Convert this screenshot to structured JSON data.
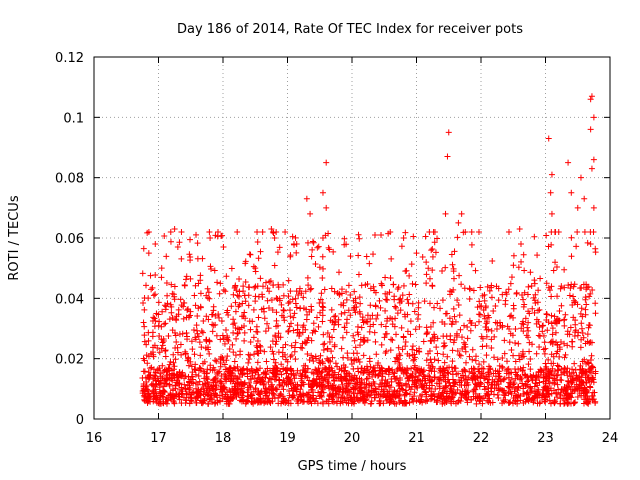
{
  "chart_data": {
    "type": "scatter",
    "title": "Day 186 of 2014, Rate Of TEC Index for receiver pots",
    "xlabel": "GPS time / hours",
    "ylabel": "ROTI / TECUs",
    "xlim": [
      16,
      24
    ],
    "ylim": [
      0,
      0.12
    ],
    "grid": true,
    "xticks": [
      16,
      17,
      18,
      19,
      20,
      21,
      22,
      23,
      24
    ],
    "xtick_labels": [
      "16",
      "17",
      "18",
      "19",
      "20",
      "21",
      "22",
      "23",
      "24"
    ],
    "yticks": [
      0,
      0.02,
      0.04,
      0.06,
      0.08,
      0.1,
      0.12
    ],
    "ytick_labels": [
      "0",
      "0.02",
      "0.04",
      "0.06",
      "0.08",
      "0.1",
      "0.12"
    ],
    "marker": "plus",
    "series_color": "#ff0000",
    "series": [
      {
        "name": "pots",
        "x_range": [
          16.75,
          23.78
        ],
        "typical_band": [
          0.005,
          0.045
        ],
        "points": [
          [
            16.85,
            0.055
          ],
          [
            16.95,
            0.058
          ],
          [
            17.05,
            0.05
          ],
          [
            17.25,
            0.063
          ],
          [
            17.3,
            0.057
          ],
          [
            17.8,
            0.06
          ],
          [
            18.5,
            0.05
          ],
          [
            18.75,
            0.063
          ],
          [
            18.8,
            0.06
          ],
          [
            19.1,
            0.058
          ],
          [
            19.3,
            0.073
          ],
          [
            19.35,
            0.068
          ],
          [
            19.55,
            0.075
          ],
          [
            19.6,
            0.085
          ],
          [
            19.6,
            0.07
          ],
          [
            19.55,
            0.06
          ],
          [
            20.45,
            0.061
          ],
          [
            20.8,
            0.06
          ],
          [
            21.0,
            0.055
          ],
          [
            21.15,
            0.052
          ],
          [
            21.45,
            0.068
          ],
          [
            21.5,
            0.095
          ],
          [
            21.48,
            0.087
          ],
          [
            21.65,
            0.065
          ],
          [
            21.7,
            0.068
          ],
          [
            22.6,
            0.063
          ],
          [
            22.62,
            0.058
          ],
          [
            23.05,
            0.093
          ],
          [
            23.1,
            0.081
          ],
          [
            23.08,
            0.075
          ],
          [
            23.1,
            0.068
          ],
          [
            23.35,
            0.085
          ],
          [
            23.4,
            0.075
          ],
          [
            23.5,
            0.07
          ],
          [
            23.55,
            0.08
          ],
          [
            23.6,
            0.073
          ],
          [
            23.7,
            0.106
          ],
          [
            23.72,
            0.107
          ],
          [
            23.75,
            0.1
          ],
          [
            23.7,
            0.096
          ],
          [
            23.75,
            0.086
          ],
          [
            23.72,
            0.083
          ],
          [
            23.75,
            0.07
          ],
          [
            23.7,
            0.058
          ]
        ]
      }
    ]
  }
}
